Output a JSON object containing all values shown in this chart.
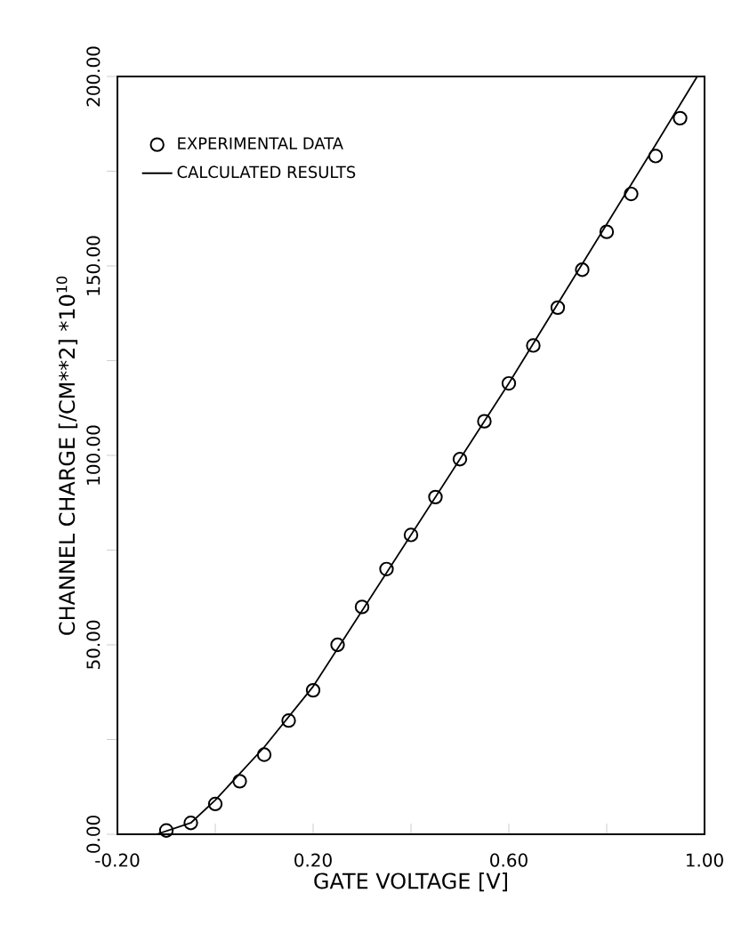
{
  "chart_data": {
    "type": "scatter",
    "xlabel": "GATE VOLTAGE [V]",
    "ylabel": "CHANNEL CHARGE [/CM**2]  *10$^{10}$",
    "xlim": [
      -0.2,
      1.0
    ],
    "ylim": [
      0,
      200
    ],
    "xticks": [
      {
        "value": -0.2,
        "label": "-0.20"
      },
      {
        "value": 0.0,
        "label": null
      },
      {
        "value": 0.2,
        "label": "0.20"
      },
      {
        "value": 0.4,
        "label": null
      },
      {
        "value": 0.6,
        "label": "0.60"
      },
      {
        "value": 0.8,
        "label": null
      },
      {
        "value": 1.0,
        "label": "1.00"
      }
    ],
    "yticks": [
      {
        "value": 0,
        "label": "0.00"
      },
      {
        "value": 25,
        "label": null
      },
      {
        "value": 50,
        "label": "50.00"
      },
      {
        "value": 75,
        "label": null
      },
      {
        "value": 100,
        "label": "100.00"
      },
      {
        "value": 125,
        "label": null
      },
      {
        "value": 150,
        "label": "150.00"
      },
      {
        "value": 175,
        "label": null
      },
      {
        "value": 200,
        "label": "200.00"
      }
    ],
    "legend": "top left",
    "grid": false,
    "series": [
      {
        "name": "EXPERIMENTAL DATA",
        "marker": "circle",
        "color": "#000000",
        "x": [
          -0.1,
          -0.05,
          0.0,
          0.05,
          0.1,
          0.15,
          0.2,
          0.25,
          0.3,
          0.35,
          0.4,
          0.45,
          0.5,
          0.55,
          0.6,
          0.65,
          0.7,
          0.75,
          0.8,
          0.85,
          0.9,
          0.95
        ],
        "values": [
          1,
          3,
          8,
          14,
          21,
          30,
          38,
          50,
          60,
          70,
          79,
          89,
          99,
          109,
          119,
          129,
          139,
          149,
          159,
          169,
          179,
          189
        ]
      },
      {
        "name": "CALCULATED RESULTS",
        "type": "line",
        "marker": "none",
        "color": "#000000",
        "x": [
          -0.12,
          -0.05,
          0.0,
          0.1,
          0.2,
          0.3,
          0.4,
          0.5,
          0.6,
          0.7,
          0.8,
          0.9,
          0.985
        ],
        "values": [
          0,
          3,
          9,
          23,
          39,
          59,
          79,
          99,
          119,
          140,
          161,
          182,
          200
        ]
      }
    ]
  }
}
